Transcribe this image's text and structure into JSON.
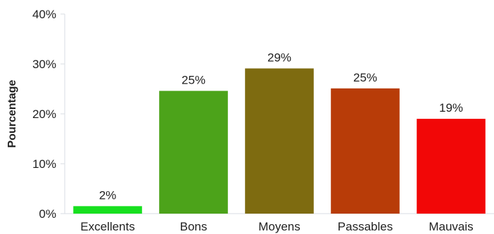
{
  "chart_data": {
    "type": "bar",
    "title": "",
    "xlabel": "",
    "ylabel": "Pourcentage",
    "ylim": [
      0,
      40
    ],
    "yticks": [
      0,
      10,
      20,
      30,
      40
    ],
    "ytick_suffix": "%",
    "grid": false,
    "categories": [
      "Excellents",
      "Bons",
      "Moyens",
      "Passables",
      "Mauvais"
    ],
    "values": [
      1.5,
      24.6,
      29.1,
      25.1,
      19.0
    ],
    "data_labels": [
      "2%",
      "25%",
      "29%",
      "25%",
      "19%"
    ],
    "colors": [
      "#17e01f",
      "#4ca31a",
      "#7e6b10",
      "#b83c08",
      "#f20707"
    ]
  }
}
